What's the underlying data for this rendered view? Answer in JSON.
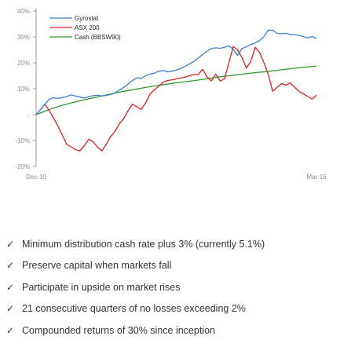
{
  "chart_data": {
    "type": "line",
    "ylim": [
      -20,
      40
    ],
    "yticks": [
      -20,
      -10,
      0,
      10,
      20,
      30,
      40
    ],
    "ytick_labels": [
      "-20%",
      "-10%",
      "-",
      "10%",
      "20%",
      "30%",
      "40%"
    ],
    "x_range": [
      0,
      64
    ],
    "xtick_labels": [
      {
        "x": 0,
        "label": "Dec-10"
      },
      {
        "x": 64,
        "label": "Mar-16"
      }
    ],
    "legend_position": "top-left",
    "grid": false,
    "series": [
      {
        "name": "Gyrostat",
        "color": "#3b7fd0",
        "x": [
          0,
          1,
          2,
          3,
          4,
          5,
          6,
          7,
          8,
          9,
          10,
          11,
          12,
          13,
          14,
          15,
          16,
          17,
          18,
          19,
          20,
          21,
          22,
          23,
          24,
          25,
          26,
          27,
          28,
          29,
          30,
          31,
          32,
          33,
          34,
          35,
          36,
          37,
          38,
          39,
          40,
          41,
          42,
          43,
          44,
          45,
          46,
          47,
          48,
          49,
          50,
          51,
          52,
          53,
          54,
          55,
          56,
          57,
          58,
          59,
          60,
          61,
          62,
          63,
          64
        ],
        "y": [
          0,
          2,
          4,
          6,
          6.5,
          6.2,
          6.6,
          7,
          7.6,
          7.2,
          6.8,
          6.4,
          6.9,
          7.3,
          7.5,
          7.2,
          7.4,
          7.8,
          8.3,
          9.5,
          10.5,
          11.8,
          13.2,
          14.2,
          14,
          15,
          15.6,
          16,
          16.8,
          17,
          16.5,
          16.8,
          17.2,
          17.8,
          18.6,
          19.6,
          20.5,
          21.8,
          23.2,
          24.5,
          25.5,
          25.8,
          25.6,
          26,
          26.6,
          25.2,
          22.8,
          25.5,
          26.2,
          27,
          27.6,
          28.6,
          30.1,
          32.6,
          32.6,
          31.4,
          31.2,
          31.4,
          31,
          30.8,
          30.6,
          30.1,
          29.6,
          30.2,
          29.3
        ]
      },
      {
        "name": "ASX 200",
        "color": "#e02020",
        "x": [
          0,
          1,
          2,
          3,
          4,
          5,
          6,
          7,
          8,
          9,
          10,
          11,
          12,
          13,
          14,
          15,
          16,
          17,
          18,
          19,
          20,
          21,
          22,
          23,
          24,
          25,
          26,
          27,
          28,
          29,
          30,
          31,
          32,
          33,
          34,
          35,
          36,
          37,
          38,
          39,
          40,
          41,
          42,
          43,
          44,
          45,
          46,
          47,
          48,
          49,
          50,
          51,
          52,
          53,
          54,
          55,
          56,
          57,
          58,
          59,
          60,
          61,
          62,
          63,
          64
        ],
        "y": [
          0,
          2,
          4,
          1.5,
          -1.5,
          -4.5,
          -8,
          -11.5,
          -12.5,
          -13.5,
          -14,
          -12,
          -9.5,
          -10.5,
          -12.5,
          -14,
          -11.5,
          -8.5,
          -6.5,
          -3.5,
          -1.5,
          1.5,
          4,
          3,
          2,
          4.5,
          8,
          9.5,
          11,
          12.5,
          13.2,
          13.4,
          13.8,
          14.1,
          14.5,
          15,
          15.5,
          15.5,
          17.5,
          14.6,
          13,
          15.6,
          13,
          13.8,
          20,
          26.3,
          25,
          22,
          18,
          20.5,
          26,
          24,
          20,
          15.5,
          9,
          10.5,
          12,
          11.4,
          12.2,
          10.6,
          9,
          8,
          7,
          6,
          7.5
        ]
      },
      {
        "name": "Cash (BBSW90)",
        "color": "#2e9a2e",
        "x": [
          0,
          2,
          4,
          6,
          8,
          10,
          12,
          14,
          16,
          18,
          20,
          22,
          24,
          26,
          28,
          30,
          32,
          34,
          36,
          38,
          40,
          42,
          44,
          46,
          48,
          50,
          52,
          54,
          56,
          58,
          60,
          62,
          64
        ],
        "y": [
          0,
          1.3,
          2.6,
          3.6,
          4.5,
          5.3,
          6.1,
          6.8,
          7.6,
          8.3,
          9,
          9.6,
          10.2,
          10.8,
          11.3,
          11.8,
          12.3,
          12.7,
          13.1,
          13.6,
          14.1,
          14.6,
          15,
          15.4,
          15.8,
          16.2,
          16.5,
          16.9,
          17.3,
          17.7,
          18.1,
          18.4,
          18.7
        ]
      }
    ]
  },
  "bullets": [
    "Minimum distribution cash rate plus 3% (currently 5.1%)",
    "Preserve capital when markets fall",
    "Participate in upside on market rises",
    "21 consecutive quarters of no losses exceeding 2%",
    "Compounded returns of 30% since inception"
  ],
  "check_icon": "check-icon"
}
